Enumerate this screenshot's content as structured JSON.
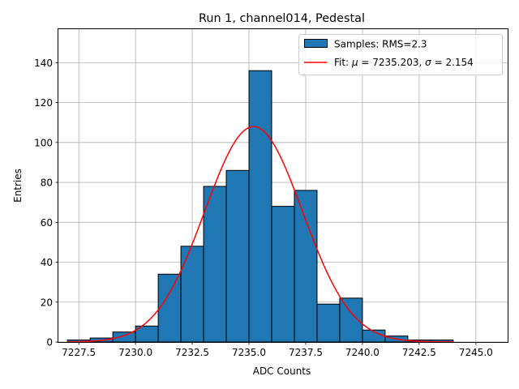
{
  "chart_data": {
    "type": "bar",
    "title": "Run 1, channel014, Pedestal",
    "xlabel": "ADC Counts",
    "ylabel": "Entries",
    "xlim": [
      7226.6,
      7246.4
    ],
    "ylim": [
      0,
      156.8
    ],
    "grid": true,
    "legend_position": "top-right",
    "x_ticks": [
      7227.5,
      7230.0,
      7232.5,
      7235.0,
      7237.5,
      7240.0,
      7242.5,
      7245.0
    ],
    "x_tick_labels": [
      "7227.5",
      "7230.0",
      "7232.5",
      "7235.0",
      "7237.5",
      "7240.0",
      "7242.5",
      "7245.0"
    ],
    "y_ticks": [
      0,
      20,
      40,
      60,
      80,
      100,
      120,
      140
    ],
    "y_tick_labels": [
      "0",
      "20",
      "40",
      "60",
      "80",
      "100",
      "120",
      "140"
    ],
    "bin_edges": [
      7227,
      7228,
      7229,
      7230,
      7231,
      7232,
      7233,
      7234,
      7235,
      7236,
      7237,
      7238,
      7239,
      7240,
      7241,
      7242,
      7243,
      7244,
      7245,
      7246
    ],
    "counts": [
      1,
      2,
      5,
      8,
      34,
      48,
      78,
      86,
      136,
      68,
      76,
      19,
      22,
      6,
      3,
      1,
      1,
      0,
      0
    ],
    "series": [
      {
        "name": "Samples: RMS=2.3",
        "kind": "histogram",
        "color": "#1f77b4",
        "edge_color": "#000000"
      },
      {
        "name": "Fit",
        "kind": "gaussian",
        "color": "#ff0000",
        "mu": 7235.203,
        "sigma": 2.154,
        "amplitude": 108,
        "x_range": [
          7227,
          7244
        ]
      }
    ],
    "legend": [
      {
        "label_prefix": "Samples: RMS=2.3",
        "label_main": "Samples: RMS=2.3"
      },
      {
        "label_prefix": "Fit: ",
        "mu_symbol": "μ",
        "mu_text": " = 7235.203, ",
        "sigma_symbol": "σ",
        "sigma_text": " = 2.154"
      }
    ]
  }
}
